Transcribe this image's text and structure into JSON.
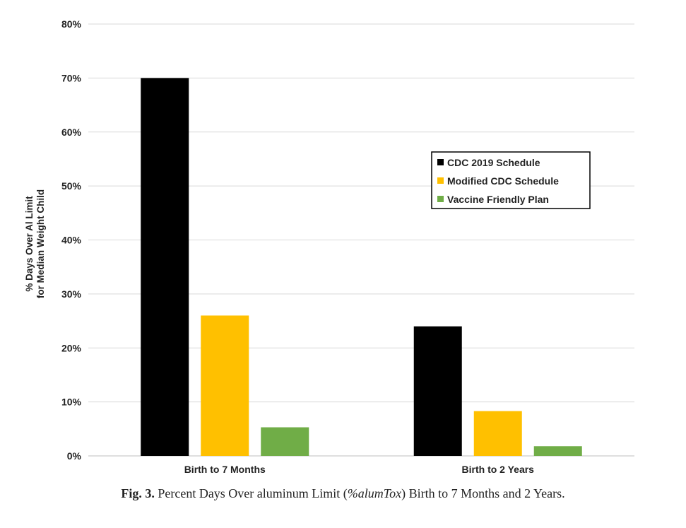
{
  "chart_data": {
    "type": "bar",
    "categories": [
      "Birth to 7 Months",
      "Birth to 2 Years"
    ],
    "series": [
      {
        "name": "CDC 2019 Schedule",
        "values": [
          70,
          24
        ],
        "color": "#000000"
      },
      {
        "name": "Modified CDC Schedule",
        "values": [
          26,
          8.3
        ],
        "color": "#ffc000"
      },
      {
        "name": "Vaccine Friendly Plan",
        "values": [
          5.3,
          1.8
        ],
        "color": "#70ad47"
      }
    ],
    "ylabel_line1": "% Days Over Al Limit",
    "ylabel_line2": "for Median Weight Child",
    "ylim": [
      0,
      80
    ],
    "yticks": [
      "0%",
      "10%",
      "20%",
      "30%",
      "40%",
      "50%",
      "60%",
      "70%",
      "80%"
    ],
    "grid": true,
    "legend_position": "right"
  },
  "caption": {
    "fig": "Fig. 3.",
    "text_before": " Percent Days Over aluminum Limit (",
    "italic": "%alumTox",
    "text_after": ") Birth to 7 Months and 2 Years."
  }
}
